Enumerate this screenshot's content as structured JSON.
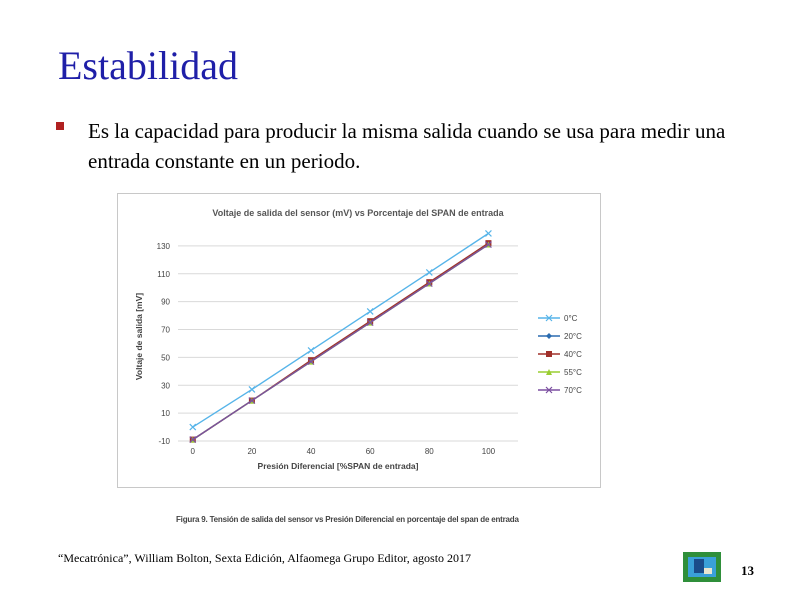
{
  "slide": {
    "title": "Estabilidad",
    "bullet": "Es la capacidad para producir la misma salida cuando se usa para medir una entrada constante en un periodo.",
    "reference": "“Mecatrónica”, William Bolton, Sexta Edición, Alfaomega Grupo Editor, agosto 2017",
    "page_number": "13",
    "figure_caption": "Figura 9. Tensión de salida del sensor vs Presión Diferencial en porcentaje del span de entrada"
  },
  "colors": {
    "title": "#1f1fa8",
    "bullet": "#b02020",
    "logo_border": "#2f8f3a"
  },
  "chart_data": {
    "type": "line",
    "title": "Voltaje de salida del sensor (mV) vs Porcentaje del SPAN de entrada",
    "xlabel": "Presión Diferencial [%SPAN de entrada]",
    "ylabel": "Voltaje de salida [mV]",
    "x": [
      0,
      20,
      40,
      60,
      80,
      100
    ],
    "xticks": [
      "0",
      "20",
      "40",
      "60",
      "80",
      "100"
    ],
    "yticks": [
      "-10",
      "10",
      "30",
      "50",
      "70",
      "90",
      "110",
      "130"
    ],
    "ylim": [
      -10,
      140
    ],
    "xlim": [
      -5,
      110
    ],
    "grid": true,
    "legend_position": "right",
    "series": [
      {
        "name": "0°C",
        "color": "#56b4e9",
        "marker": "x",
        "values": [
          0,
          27,
          55,
          83,
          111,
          139
        ]
      },
      {
        "name": "20°C",
        "color": "#2b6cb0",
        "marker": "diamond",
        "values": [
          -9,
          19,
          47,
          75,
          103,
          131
        ]
      },
      {
        "name": "40°C",
        "color": "#a0302a",
        "marker": "square",
        "values": [
          -9,
          19,
          48,
          76,
          104,
          132
        ]
      },
      {
        "name": "55°C",
        "color": "#9acd32",
        "marker": "triangle",
        "values": [
          -9,
          19,
          47,
          75,
          103,
          131
        ]
      },
      {
        "name": "70°C",
        "color": "#7b4fa0",
        "marker": "x",
        "values": [
          -9,
          19,
          47,
          75,
          103,
          131
        ]
      }
    ]
  }
}
